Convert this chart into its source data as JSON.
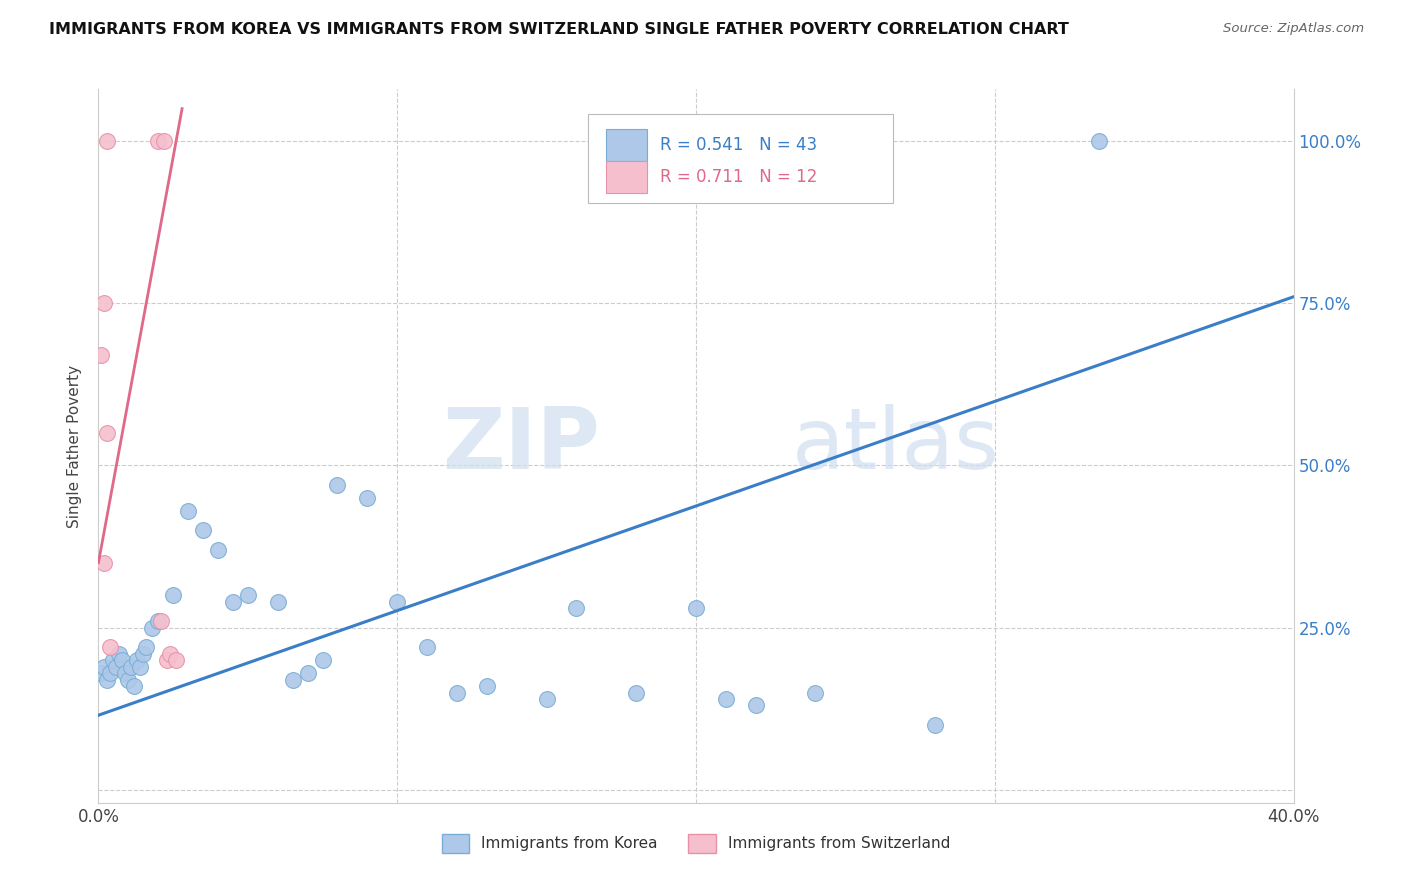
{
  "title": "IMMIGRANTS FROM KOREA VS IMMIGRANTS FROM SWITZERLAND SINGLE FATHER POVERTY CORRELATION CHART",
  "source": "Source: ZipAtlas.com",
  "ylabel": "Single Father Poverty",
  "yticks": [
    "",
    "25.0%",
    "50.0%",
    "75.0%",
    "100.0%"
  ],
  "ytick_vals": [
    0.0,
    0.25,
    0.5,
    0.75,
    1.0
  ],
  "xlim": [
    0.0,
    0.4
  ],
  "ylim": [
    -0.02,
    1.08
  ],
  "watermark_zip": "ZIP",
  "watermark_atlas": "atlas",
  "korea_color": "#adc8e8",
  "korea_edge": "#7aadd4",
  "swiss_color": "#f5bfce",
  "swiss_edge": "#e890aa",
  "line_korea_color": "#3a7ec8",
  "line_swiss_color": "#e06888",
  "R_korea": "0.541",
  "N_korea": "43",
  "R_swiss": "0.711",
  "N_swiss": "12",
  "legend_R_color": "#3a7ec8",
  "legend_N_color": "#3a7ec8",
  "korea_x": [
    0.001,
    0.002,
    0.003,
    0.004,
    0.005,
    0.006,
    0.007,
    0.008,
    0.009,
    0.01,
    0.011,
    0.012,
    0.013,
    0.014,
    0.015,
    0.016,
    0.018,
    0.02,
    0.025,
    0.03,
    0.035,
    0.04,
    0.045,
    0.05,
    0.06,
    0.065,
    0.07,
    0.075,
    0.08,
    0.09,
    0.1,
    0.11,
    0.12,
    0.13,
    0.15,
    0.16,
    0.18,
    0.2,
    0.21,
    0.22,
    0.24,
    0.28,
    0.335
  ],
  "korea_y": [
    0.18,
    0.19,
    0.17,
    0.18,
    0.2,
    0.19,
    0.21,
    0.2,
    0.18,
    0.17,
    0.19,
    0.16,
    0.2,
    0.19,
    0.21,
    0.22,
    0.25,
    0.26,
    0.3,
    0.43,
    0.4,
    0.37,
    0.29,
    0.3,
    0.29,
    0.17,
    0.18,
    0.2,
    0.47,
    0.45,
    0.29,
    0.22,
    0.15,
    0.16,
    0.14,
    0.28,
    0.15,
    0.28,
    0.14,
    0.13,
    0.15,
    0.1,
    1.0
  ],
  "swiss_x": [
    0.001,
    0.002,
    0.003,
    0.02,
    0.022,
    0.002,
    0.003,
    0.004,
    0.021,
    0.023,
    0.024,
    0.026
  ],
  "swiss_y": [
    0.67,
    0.75,
    1.0,
    1.0,
    1.0,
    0.35,
    0.55,
    0.22,
    0.26,
    0.2,
    0.21,
    0.2
  ],
  "korea_line_x0": 0.0,
  "korea_line_x1": 0.4,
  "korea_line_y0": 0.115,
  "korea_line_y1": 0.76,
  "swiss_line_x0": 0.0,
  "swiss_line_x1": 0.028,
  "swiss_line_y0": 0.35,
  "swiss_line_y1": 1.05
}
